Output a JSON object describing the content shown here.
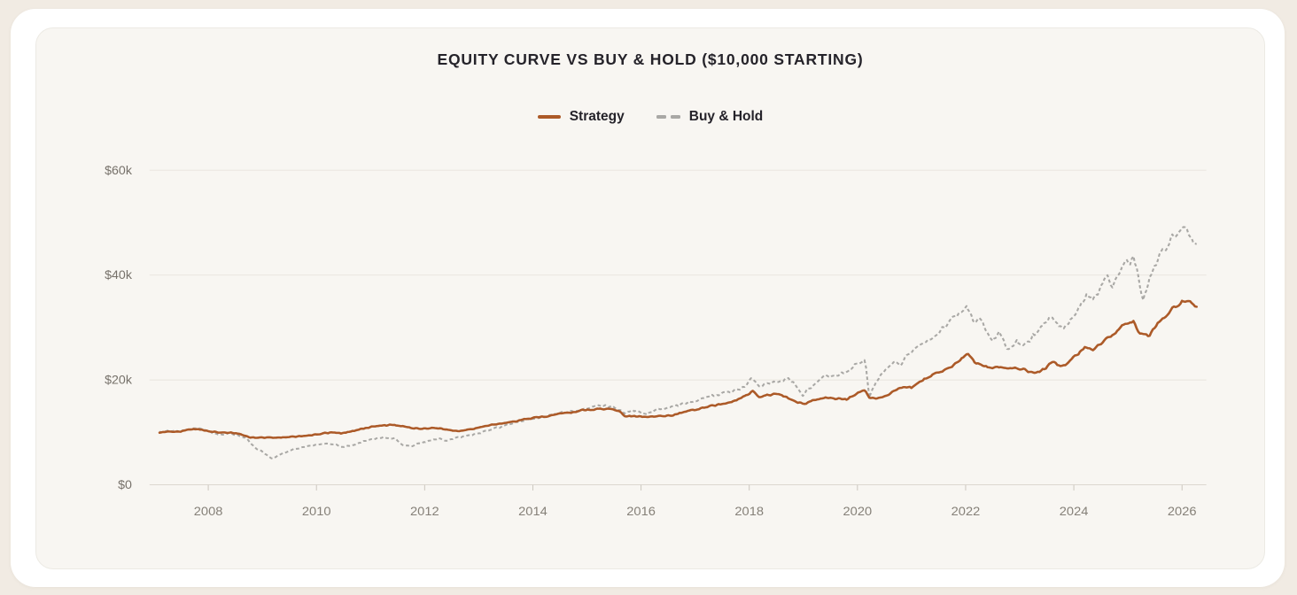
{
  "page": {
    "background": "#f1ebe3",
    "card_background": "#ffffff",
    "panel_background": "#f8f6f2"
  },
  "chart": {
    "title": "EQUITY CURVE VS BUY & HOLD ($10,000 STARTING)",
    "legend": [
      {
        "label": "Strategy",
        "color": "#ac5a28",
        "style": "solid"
      },
      {
        "label": "Buy & Hold",
        "color": "#a9a8a5",
        "style": "dashed"
      }
    ]
  },
  "chart_data": {
    "type": "line",
    "title": "EQUITY CURVE VS BUY & HOLD ($10,000 STARTING)",
    "starting_capital": 10000,
    "legend_position": "top-center",
    "grid": "horizontal-only",
    "x_axis": {
      "tick_labels": [
        "2008",
        "2010",
        "2012",
        "2014",
        "2016",
        "2018",
        "2020",
        "2022",
        "2024",
        "2026"
      ],
      "tick_values": [
        2008,
        2010,
        2012,
        2014,
        2016,
        2018,
        2020,
        2022,
        2024,
        2026
      ],
      "range": [
        2007.1,
        2026.75
      ]
    },
    "y_axis": {
      "tick_labels": [
        "$0",
        "$20k",
        "$40k",
        "$60k"
      ],
      "tick_values": [
        0,
        20000,
        40000,
        60000
      ],
      "range": [
        0,
        60000
      ],
      "units": "USD"
    },
    "series": [
      {
        "name": "Strategy",
        "color": "#ac5a28",
        "dash": false,
        "noise": 0.012,
        "points": [
          [
            2007.1,
            10000
          ],
          [
            2007.25,
            10200
          ],
          [
            2007.45,
            10100
          ],
          [
            2007.6,
            10500
          ],
          [
            2007.8,
            10600
          ],
          [
            2007.95,
            10300
          ],
          [
            2008.1,
            10100
          ],
          [
            2008.3,
            10000
          ],
          [
            2008.45,
            9900
          ],
          [
            2008.6,
            9600
          ],
          [
            2008.72,
            9200
          ],
          [
            2008.8,
            9000
          ],
          [
            2009.0,
            9000
          ],
          [
            2009.3,
            9000
          ],
          [
            2009.5,
            9100
          ],
          [
            2009.7,
            9300
          ],
          [
            2009.9,
            9500
          ],
          [
            2010.1,
            9800
          ],
          [
            2010.3,
            10000
          ],
          [
            2010.45,
            9800
          ],
          [
            2010.6,
            10100
          ],
          [
            2010.8,
            10600
          ],
          [
            2011.0,
            11000
          ],
          [
            2011.2,
            11300
          ],
          [
            2011.4,
            11500
          ],
          [
            2011.55,
            11200
          ],
          [
            2011.7,
            10900
          ],
          [
            2011.85,
            10800
          ],
          [
            2012.0,
            10700
          ],
          [
            2012.2,
            10900
          ],
          [
            2012.4,
            10500
          ],
          [
            2012.55,
            10300
          ],
          [
            2012.7,
            10400
          ],
          [
            2012.9,
            10600
          ],
          [
            2013.1,
            11100
          ],
          [
            2013.3,
            11600
          ],
          [
            2013.5,
            11900
          ],
          [
            2013.7,
            12200
          ],
          [
            2013.9,
            12600
          ],
          [
            2014.1,
            12900
          ],
          [
            2014.3,
            13100
          ],
          [
            2014.5,
            13600
          ],
          [
            2014.7,
            13800
          ],
          [
            2014.9,
            14200
          ],
          [
            2015.1,
            14400
          ],
          [
            2015.3,
            14500
          ],
          [
            2015.5,
            14300
          ],
          [
            2015.62,
            13900
          ],
          [
            2015.7,
            13100
          ],
          [
            2015.9,
            13100
          ],
          [
            2016.1,
            13000
          ],
          [
            2016.35,
            13100
          ],
          [
            2016.6,
            13300
          ],
          [
            2016.8,
            13900
          ],
          [
            2017.0,
            14400
          ],
          [
            2017.25,
            15000
          ],
          [
            2017.5,
            15400
          ],
          [
            2017.75,
            16100
          ],
          [
            2017.95,
            17000
          ],
          [
            2018.07,
            17800
          ],
          [
            2018.18,
            16600
          ],
          [
            2018.3,
            17000
          ],
          [
            2018.45,
            17300
          ],
          [
            2018.6,
            17100
          ],
          [
            2018.75,
            16500
          ],
          [
            2018.9,
            15600
          ],
          [
            2019.05,
            15500
          ],
          [
            2019.2,
            16200
          ],
          [
            2019.4,
            16700
          ],
          [
            2019.6,
            16400
          ],
          [
            2019.8,
            16300
          ],
          [
            2020.0,
            17400
          ],
          [
            2020.15,
            18000
          ],
          [
            2020.22,
            16600
          ],
          [
            2020.35,
            16400
          ],
          [
            2020.5,
            16700
          ],
          [
            2020.65,
            17700
          ],
          [
            2020.85,
            18800
          ],
          [
            2021.0,
            18500
          ],
          [
            2021.15,
            19600
          ],
          [
            2021.35,
            20700
          ],
          [
            2021.55,
            21700
          ],
          [
            2021.75,
            22600
          ],
          [
            2021.9,
            23800
          ],
          [
            2022.05,
            25200
          ],
          [
            2022.18,
            23300
          ],
          [
            2022.35,
            22600
          ],
          [
            2022.5,
            22300
          ],
          [
            2022.65,
            22600
          ],
          [
            2022.8,
            22200
          ],
          [
            2023.0,
            22200
          ],
          [
            2023.15,
            21700
          ],
          [
            2023.3,
            21300
          ],
          [
            2023.45,
            22000
          ],
          [
            2023.6,
            23600
          ],
          [
            2023.75,
            22600
          ],
          [
            2023.9,
            23200
          ],
          [
            2024.05,
            24800
          ],
          [
            2024.2,
            26100
          ],
          [
            2024.35,
            25700
          ],
          [
            2024.5,
            26900
          ],
          [
            2024.65,
            28200
          ],
          [
            2024.8,
            29300
          ],
          [
            2024.95,
            30600
          ],
          [
            2025.1,
            31300
          ],
          [
            2025.2,
            28700
          ],
          [
            2025.4,
            28600
          ],
          [
            2025.55,
            30600
          ],
          [
            2025.7,
            32400
          ],
          [
            2025.85,
            33800
          ],
          [
            2026.0,
            34800
          ],
          [
            2026.1,
            35200
          ],
          [
            2026.2,
            34300
          ],
          [
            2026.27,
            34000
          ]
        ]
      },
      {
        "name": "Buy & Hold",
        "color": "#a9a8a5",
        "dash": true,
        "noise": 0.02,
        "points": [
          [
            2007.1,
            10000
          ],
          [
            2007.3,
            10300
          ],
          [
            2007.5,
            10200
          ],
          [
            2007.8,
            10800
          ],
          [
            2007.95,
            10400
          ],
          [
            2008.1,
            9900
          ],
          [
            2008.25,
            9600
          ],
          [
            2008.4,
            9800
          ],
          [
            2008.55,
            9400
          ],
          [
            2008.7,
            8900
          ],
          [
            2008.78,
            8000
          ],
          [
            2008.9,
            6800
          ],
          [
            2009.0,
            6300
          ],
          [
            2009.1,
            5600
          ],
          [
            2009.18,
            4900
          ],
          [
            2009.3,
            5600
          ],
          [
            2009.45,
            6300
          ],
          [
            2009.6,
            6900
          ],
          [
            2009.8,
            7300
          ],
          [
            2010.0,
            7700
          ],
          [
            2010.2,
            7900
          ],
          [
            2010.35,
            7700
          ],
          [
            2010.5,
            7200
          ],
          [
            2010.65,
            7500
          ],
          [
            2010.85,
            8200
          ],
          [
            2011.05,
            8700
          ],
          [
            2011.25,
            9100
          ],
          [
            2011.45,
            8800
          ],
          [
            2011.6,
            7600
          ],
          [
            2011.75,
            7300
          ],
          [
            2011.9,
            7900
          ],
          [
            2012.05,
            8300
          ],
          [
            2012.25,
            8900
          ],
          [
            2012.4,
            8500
          ],
          [
            2012.55,
            8800
          ],
          [
            2012.75,
            9300
          ],
          [
            2012.95,
            9600
          ],
          [
            2013.15,
            10300
          ],
          [
            2013.35,
            10900
          ],
          [
            2013.55,
            11500
          ],
          [
            2013.75,
            12000
          ],
          [
            2013.95,
            12500
          ],
          [
            2014.15,
            12800
          ],
          [
            2014.35,
            13200
          ],
          [
            2014.55,
            13800
          ],
          [
            2014.75,
            14000
          ],
          [
            2014.95,
            14400
          ],
          [
            2015.15,
            14900
          ],
          [
            2015.35,
            15100
          ],
          [
            2015.5,
            14800
          ],
          [
            2015.62,
            14400
          ],
          [
            2015.7,
            13500
          ],
          [
            2015.85,
            14300
          ],
          [
            2016.0,
            13800
          ],
          [
            2016.1,
            13500
          ],
          [
            2016.3,
            14400
          ],
          [
            2016.5,
            14800
          ],
          [
            2016.7,
            15200
          ],
          [
            2016.9,
            15800
          ],
          [
            2017.1,
            16400
          ],
          [
            2017.3,
            17000
          ],
          [
            2017.5,
            17300
          ],
          [
            2017.7,
            17800
          ],
          [
            2017.9,
            18600
          ],
          [
            2018.05,
            20300
          ],
          [
            2018.18,
            18500
          ],
          [
            2018.3,
            19100
          ],
          [
            2018.45,
            19500
          ],
          [
            2018.6,
            19900
          ],
          [
            2018.72,
            20400
          ],
          [
            2018.85,
            19000
          ],
          [
            2019.0,
            17100
          ],
          [
            2019.15,
            18900
          ],
          [
            2019.3,
            20200
          ],
          [
            2019.45,
            20900
          ],
          [
            2019.6,
            20600
          ],
          [
            2019.75,
            21400
          ],
          [
            2019.9,
            22300
          ],
          [
            2020.05,
            23400
          ],
          [
            2020.14,
            24100
          ],
          [
            2020.22,
            16800
          ],
          [
            2020.3,
            18500
          ],
          [
            2020.42,
            20800
          ],
          [
            2020.55,
            22600
          ],
          [
            2020.7,
            23600
          ],
          [
            2020.8,
            22800
          ],
          [
            2020.9,
            24600
          ],
          [
            2021.05,
            25600
          ],
          [
            2021.2,
            26800
          ],
          [
            2021.35,
            28000
          ],
          [
            2021.5,
            29200
          ],
          [
            2021.65,
            30600
          ],
          [
            2021.8,
            32200
          ],
          [
            2021.95,
            33600
          ],
          [
            2022.02,
            34000
          ],
          [
            2022.15,
            30800
          ],
          [
            2022.25,
            31800
          ],
          [
            2022.4,
            29300
          ],
          [
            2022.5,
            27600
          ],
          [
            2022.62,
            29200
          ],
          [
            2022.78,
            25800
          ],
          [
            2022.95,
            27200
          ],
          [
            2023.08,
            26300
          ],
          [
            2023.25,
            28300
          ],
          [
            2023.4,
            29800
          ],
          [
            2023.55,
            31800
          ],
          [
            2023.65,
            31400
          ],
          [
            2023.8,
            29700
          ],
          [
            2023.95,
            31500
          ],
          [
            2024.1,
            33600
          ],
          [
            2024.25,
            36200
          ],
          [
            2024.35,
            35000
          ],
          [
            2024.5,
            37600
          ],
          [
            2024.62,
            39600
          ],
          [
            2024.72,
            37400
          ],
          [
            2024.85,
            41200
          ],
          [
            2024.95,
            42900
          ],
          [
            2025.02,
            41800
          ],
          [
            2025.1,
            43600
          ],
          [
            2025.18,
            40500
          ],
          [
            2025.28,
            35500
          ],
          [
            2025.4,
            39500
          ],
          [
            2025.52,
            42400
          ],
          [
            2025.65,
            44600
          ],
          [
            2025.8,
            46800
          ],
          [
            2025.95,
            48600
          ],
          [
            2026.05,
            49200
          ],
          [
            2026.12,
            48200
          ],
          [
            2026.2,
            45900
          ],
          [
            2026.27,
            45300
          ]
        ]
      }
    ]
  }
}
